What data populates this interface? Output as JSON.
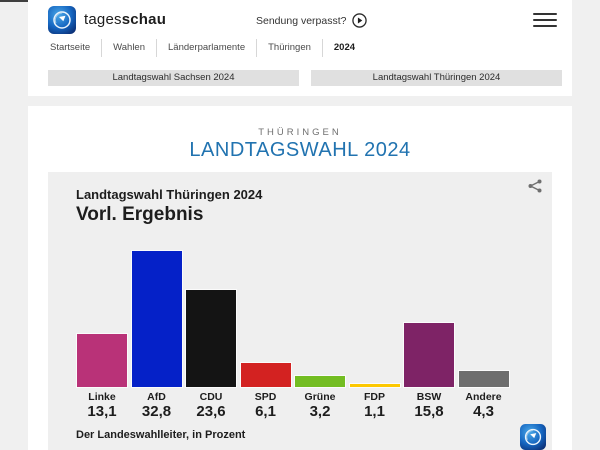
{
  "header": {
    "brand_regular": "tages",
    "brand_bold": "schau",
    "missed_broadcast_label": "Sendung verpasst?",
    "breadcrumb": [
      "Startseite",
      "Wahlen",
      "Länderparlamente",
      "Thüringen",
      "2024"
    ],
    "tab_buttons": [
      "Landtagswahl Sachsen 2024",
      "Landtagswahl Thüringen 2024"
    ]
  },
  "main": {
    "region_label": "THÜRINGEN",
    "page_title": "LANDTAGSWAHL 2024"
  },
  "chart_data": {
    "type": "bar",
    "title": "Landtagswahl Thüringen 2024",
    "subtitle": "Vorl. Ergebnis",
    "source_note": "Der Landeswahlleiter, in Prozent",
    "unit": "percent",
    "categories": [
      "Linke",
      "AfD",
      "CDU",
      "SPD",
      "Grüne",
      "FDP",
      "BSW",
      "Andere"
    ],
    "values": [
      13.1,
      32.8,
      23.6,
      6.1,
      3.2,
      1.1,
      15.8,
      4.3
    ],
    "value_labels": [
      "13,1",
      "32,8",
      "23,6",
      "6,1",
      "3,2",
      "1,1",
      "15,8",
      "4,3"
    ],
    "bar_colors": [
      "#b93278",
      "#0521c8",
      "#141414",
      "#d32221",
      "#73bd22",
      "#fdc800",
      "#7e2366",
      "#6e6e6e"
    ],
    "ylim": [
      0,
      35
    ],
    "grid": false,
    "legend": false
  },
  "icons": {
    "menu": "hamburger",
    "play": "play-circle",
    "share": "share-nodes",
    "logo": "tagesschau-globe"
  },
  "colors": {
    "accent_blue": "#2173b0",
    "page_background": "#f0f0f0",
    "card_background": "#ffffff",
    "chart_background": "#efefef",
    "button_gray": "#e0e0e0"
  }
}
